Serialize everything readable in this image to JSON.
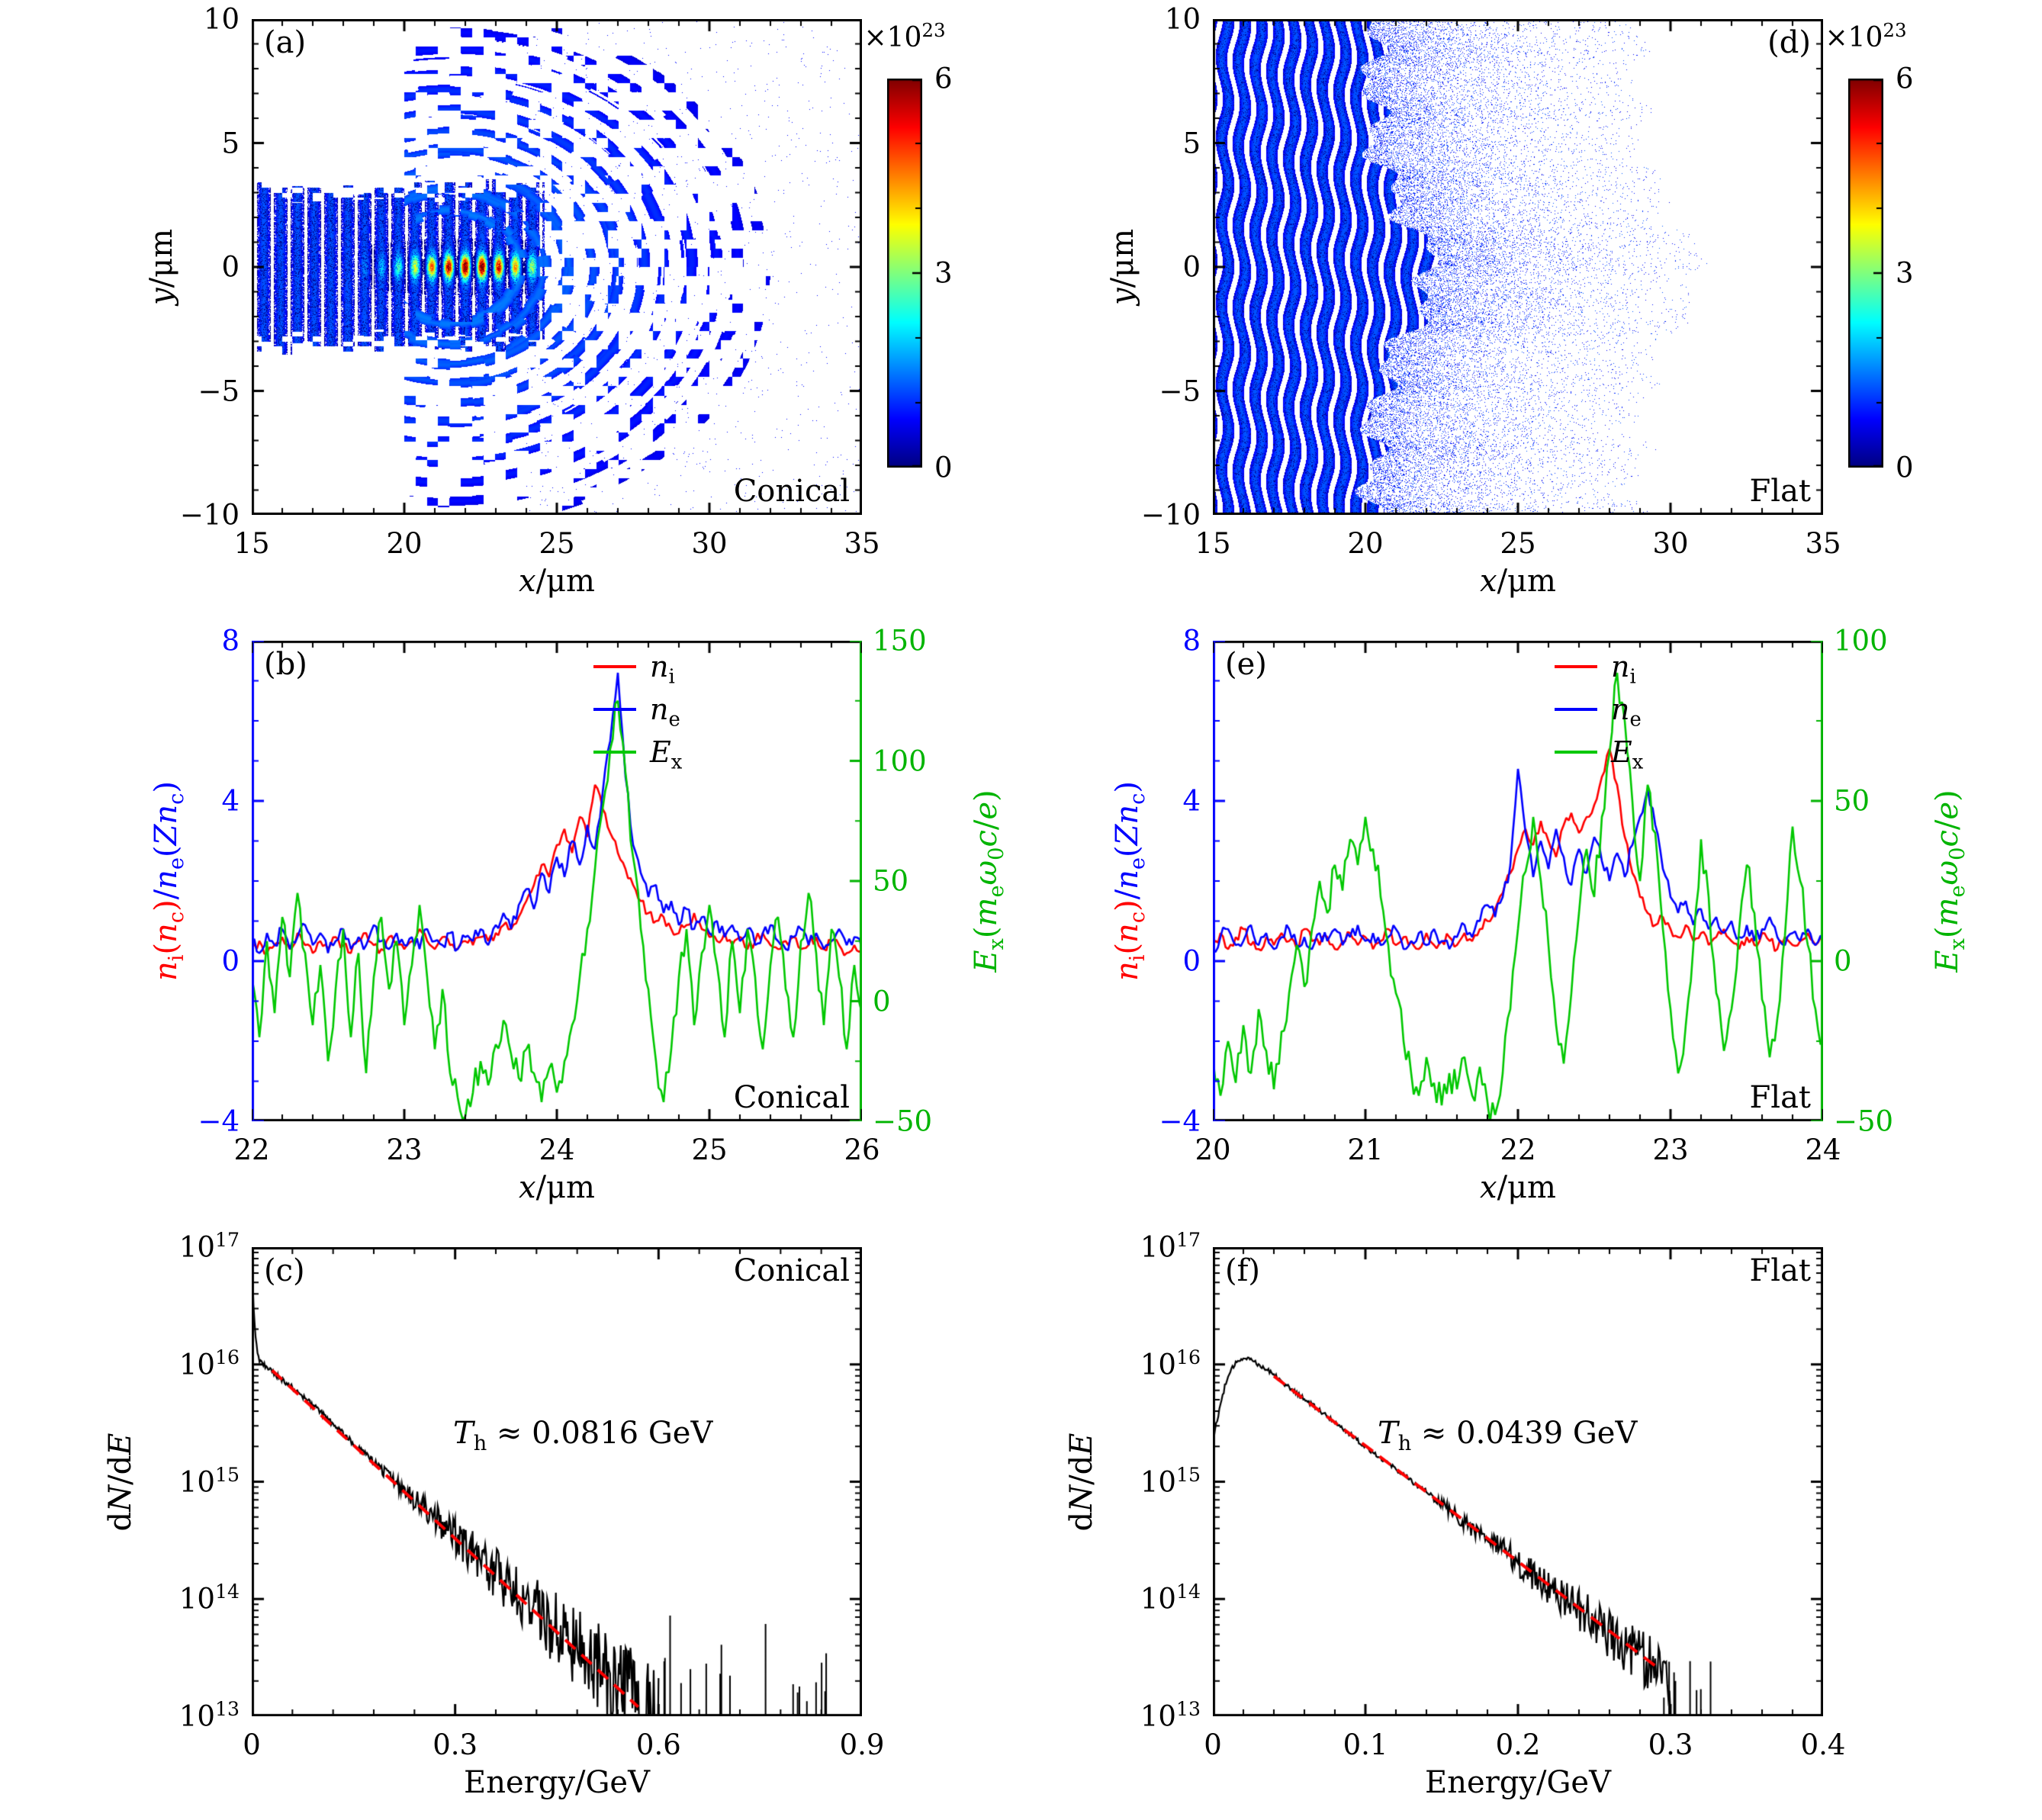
{
  "chart_data": [
    {
      "id": "a",
      "type": "heatmap",
      "panel_tag": "(a)",
      "corner_label": "Conical",
      "xlabel": "*x*/μm",
      "ylabel": "*y*/μm",
      "xlim": [
        15,
        35
      ],
      "ylim": [
        -10,
        10
      ],
      "xticks": [
        15,
        20,
        25,
        30,
        35
      ],
      "yticks": [
        -10,
        -5,
        0,
        5,
        10
      ],
      "colorbar": {
        "title": "×10^{23}",
        "lim": [
          0,
          6
        ],
        "ticks": [
          0,
          3,
          6
        ],
        "colormap": "jet"
      },
      "field": {
        "description": "Ion density map behind conical target: striated plasma channel along y=0 from x=15 to ~24.5 um with hot filament core up to 6e23 for 19<x<24.4, surrounded by conical bow-wave arc filaments expanding to x~32 um",
        "stripe_period_um": 0.55,
        "channel_halfwidth_um": 3.1,
        "core_x_um": [
          18.6,
          24.4
        ],
        "core_peak": 6,
        "arc_center_x_um": 21.5,
        "arc_spacing_um": 0.8,
        "arc_max_radius_um": 10.5
      }
    },
    {
      "id": "d",
      "type": "heatmap",
      "panel_tag": "(d)",
      "corner_label": "Flat",
      "xlabel": "*x*/μm",
      "ylabel": "*y*/μm",
      "xlim": [
        15,
        35
      ],
      "ylim": [
        -10,
        10
      ],
      "xticks": [
        15,
        20,
        25,
        30,
        35
      ],
      "yticks": [
        -10,
        -5,
        0,
        5,
        10
      ],
      "colorbar": {
        "title": "×10^{23}",
        "lim": [
          0,
          6
        ],
        "ticks": [
          0,
          3,
          6
        ],
        "colormap": "jet"
      },
      "field": {
        "description": "Ion density map behind flat target: vertical density stripes from x=15 to ~20 um across all y, central bulge to x~22 um, sparse ion speckle out to x~29 um, density below ~2e23",
        "stripe_period_um": 0.55,
        "stripe_region_x_um": [
          15,
          20.2
        ],
        "center_bulge_x_um": 22.1,
        "speckle_extent_x_um": 29
      }
    },
    {
      "id": "b",
      "type": "lines",
      "panel_tag": "(b)",
      "corner_label": "Conical",
      "xlabel": "*x*/μm",
      "ylabel_left_parts": [
        {
          "text": "*n*_{i}(*n*_{c})",
          "color": "#ff0000"
        },
        {
          "text": "/*n*_{e}(*Zn*_{c})",
          "color": "#0000ff"
        }
      ],
      "ylabel_right": "*E*_{x}(*m*_{e}*ω*_{0}*c*/*e*)",
      "xlim": [
        22,
        26
      ],
      "xticks": [
        22,
        23,
        24,
        25,
        26
      ],
      "ylim_left": [
        -4,
        8
      ],
      "yticks_left": [
        -4,
        0,
        4,
        8
      ],
      "ylim_right": [
        -50,
        150
      ],
      "yticks_right": [
        -50,
        0,
        50,
        100,
        150
      ],
      "axis_colors": {
        "left": "#0000ff",
        "right": "#00b400",
        "top": "#000000",
        "bottom": "#000000"
      },
      "legend": [
        {
          "label": "*n*_{i}",
          "color": "#ff0000"
        },
        {
          "label": "*n*_{e}",
          "color": "#0000ff"
        },
        {
          "label": "*E*_{x}",
          "color": "#00c800"
        }
      ],
      "x_start": 22,
      "x_step": 0.05,
      "series": [
        {
          "name": "n_i",
          "axis": "left",
          "color": "#ff0000",
          "jitter": 0.14,
          "seed": 3,
          "values": [
            0.3,
            0.5,
            0.2,
            0.4,
            0.6,
            0.3,
            0.7,
            0.4,
            0.2,
            0.5,
            0.3,
            0.6,
            0.4,
            0.2,
            0.5,
            0.7,
            0.4,
            0.3,
            0.6,
            0.4,
            0.3,
            0.5,
            0.8,
            0.5,
            0.3,
            0.6,
            0.4,
            0.3,
            0.5,
            0.4,
            0.6,
            0.5,
            0.7,
            0.9,
            0.8,
            1.1,
            1.5,
            1.9,
            2.4,
            2.1,
            2.9,
            3.3,
            2.7,
            3.6,
            3.1,
            4.4,
            3.8,
            3.2,
            2.7,
            2.3,
            1.9,
            1.5,
            1.2,
            1.0,
            1.1,
            0.8,
            0.7,
            0.9,
            1.2,
            0.8,
            0.6,
            0.5,
            0.7,
            0.4,
            0.6,
            0.3,
            0.5,
            0.7,
            0.4,
            0.3,
            0.5,
            0.6,
            0.3,
            0.4,
            0.6,
            0.3,
            0.5,
            0.4,
            0.2,
            0.4,
            0.3
          ]
        },
        {
          "name": "n_e",
          "axis": "left",
          "color": "#0000ff",
          "jitter": 0.18,
          "seed": 4,
          "values": [
            0.5,
            0.2,
            0.7,
            0.4,
            0.8,
            0.3,
            0.6,
            0.9,
            0.4,
            0.7,
            0.2,
            0.5,
            0.8,
            0.3,
            0.6,
            0.4,
            0.9,
            0.5,
            0.3,
            0.7,
            0.4,
            0.6,
            0.3,
            0.8,
            0.5,
            0.4,
            0.7,
            0.3,
            0.6,
            0.5,
            0.8,
            0.4,
            0.9,
            1.2,
            0.8,
            1.4,
            1.8,
            1.3,
            2.2,
            1.7,
            2.6,
            2.1,
            3.0,
            2.4,
            3.4,
            2.8,
            4.2,
            5.5,
            7.2,
            4.6,
            2.9,
            2.2,
            1.6,
            1.9,
            1.2,
            1.5,
            0.9,
            1.3,
            0.8,
            1.1,
            0.7,
            1.0,
            0.6,
            0.9,
            0.5,
            0.8,
            0.4,
            0.7,
            0.9,
            0.5,
            0.3,
            0.6,
            0.8,
            0.4,
            0.7,
            0.3,
            0.5,
            0.8,
            0.4,
            0.6,
            0.3
          ]
        },
        {
          "name": "E_x",
          "axis": "right",
          "color": "#00c800",
          "jitter": 6,
          "seed": 5,
          "values": [
            10,
            -15,
            25,
            -5,
            35,
            10,
            45,
            20,
            -10,
            15,
            -25,
            5,
            30,
            -15,
            20,
            -30,
            10,
            35,
            5,
            25,
            -10,
            15,
            40,
            10,
            -20,
            5,
            -30,
            -40,
            -48,
            -38,
            -25,
            -35,
            -18,
            -8,
            -22,
            -32,
            -20,
            -30,
            -42,
            -28,
            -38,
            -25,
            -10,
            10,
            30,
            55,
            80,
            105,
            125,
            95,
            60,
            30,
            5,
            -25,
            -42,
            -20,
            10,
            30,
            -10,
            20,
            40,
            15,
            -15,
            25,
            -5,
            30,
            10,
            -20,
            15,
            35,
            5,
            -15,
            25,
            45,
            20,
            -10,
            30,
            10,
            -20,
            15,
            -5
          ]
        }
      ]
    },
    {
      "id": "e",
      "type": "lines",
      "panel_tag": "(e)",
      "corner_label": "Flat",
      "xlabel": "*x*/μm",
      "ylabel_left_parts": [
        {
          "text": "*n*_{i}(*n*_{c})",
          "color": "#ff0000"
        },
        {
          "text": "/*n*_{e}(*Zn*_{c})",
          "color": "#0000ff"
        }
      ],
      "ylabel_right": "*E*_{x}(*m*_{e}*ω*_{0}*c*/*e*)",
      "xlim": [
        20,
        24
      ],
      "xticks": [
        20,
        21,
        22,
        23,
        24
      ],
      "ylim_left": [
        -4,
        8
      ],
      "yticks_left": [
        -4,
        0,
        4,
        8
      ],
      "ylim_right": [
        -50,
        100
      ],
      "yticks_right": [
        -50,
        0,
        50,
        100
      ],
      "axis_colors": {
        "left": "#0000ff",
        "right": "#00b400",
        "top": "#000000",
        "bottom": "#000000"
      },
      "legend": [
        {
          "label": "*n*_{i}",
          "color": "#ff0000"
        },
        {
          "label": "*n*_{e}",
          "color": "#0000ff"
        },
        {
          "label": "*E*_{x}",
          "color": "#00c800"
        }
      ],
      "x_start": 20,
      "x_step": 0.05,
      "series": [
        {
          "name": "n_i",
          "axis": "left",
          "color": "#ff0000",
          "jitter": 0.14,
          "seed": 6,
          "values": [
            0.4,
            0.7,
            0.3,
            0.6,
            0.8,
            0.4,
            0.3,
            0.6,
            0.4,
            0.7,
            0.5,
            0.3,
            0.8,
            0.5,
            0.4,
            0.6,
            0.3,
            0.5,
            0.7,
            0.4,
            0.6,
            0.3,
            0.5,
            0.8,
            0.4,
            0.6,
            0.5,
            0.3,
            0.7,
            0.4,
            0.5,
            0.6,
            0.4,
            0.7,
            0.5,
            0.8,
            1.0,
            1.3,
            1.7,
            2.2,
            2.8,
            3.3,
            2.9,
            3.5,
            3.0,
            2.6,
            3.4,
            3.7,
            3.2,
            3.6,
            3.9,
            4.6,
            5.3,
            4.4,
            3.1,
            2.2,
            1.6,
            1.2,
            0.9,
            1.1,
            0.8,
            0.6,
            0.9,
            0.5,
            0.7,
            0.4,
            0.6,
            0.8,
            0.5,
            0.3,
            0.6,
            0.4,
            0.7,
            0.5,
            0.3,
            0.6,
            0.4,
            0.5,
            0.7,
            0.4,
            0.5
          ]
        },
        {
          "name": "n_e",
          "axis": "left",
          "color": "#0000ff",
          "jitter": 0.18,
          "seed": 7,
          "values": [
            0.3,
            0.6,
            0.8,
            0.4,
            0.5,
            0.9,
            0.4,
            0.7,
            0.3,
            0.6,
            0.8,
            0.4,
            0.6,
            0.3,
            0.7,
            0.5,
            0.8,
            0.4,
            0.6,
            0.9,
            0.5,
            0.7,
            0.4,
            0.6,
            0.8,
            0.3,
            0.5,
            0.7,
            0.4,
            0.8,
            0.5,
            0.3,
            0.6,
            0.9,
            0.6,
            1.0,
            1.4,
            1.1,
            1.6,
            2.4,
            4.8,
            3.2,
            2.1,
            3.0,
            2.3,
            3.3,
            2.6,
            1.9,
            2.8,
            2.2,
            3.1,
            2.5,
            2.0,
            2.7,
            2.1,
            2.9,
            3.6,
            4.3,
            3.4,
            2.3,
            1.6,
            1.2,
            1.5,
            0.9,
            1.3,
            0.8,
            1.1,
            0.7,
            1.0,
            0.6,
            0.9,
            0.5,
            0.8,
            1.1,
            0.6,
            0.4,
            0.7,
            0.5,
            0.8,
            0.4,
            0.6
          ]
        },
        {
          "name": "E_x",
          "axis": "right",
          "color": "#00c800",
          "jitter": 5,
          "seed": 8,
          "values": [
            -30,
            -42,
            -25,
            -38,
            -20,
            -35,
            -15,
            -28,
            -40,
            -22,
            -10,
            5,
            -8,
            10,
            25,
            15,
            30,
            22,
            38,
            30,
            45,
            35,
            20,
            5,
            -10,
            -25,
            -35,
            -42,
            -30,
            -38,
            -45,
            -35,
            -40,
            -30,
            -42,
            -33,
            -44,
            -48,
            -35,
            -15,
            10,
            28,
            45,
            25,
            5,
            -20,
            -32,
            -10,
            15,
            35,
            20,
            45,
            65,
            90,
            75,
            50,
            25,
            55,
            40,
            10,
            -15,
            -35,
            -20,
            5,
            38,
            20,
            -10,
            -28,
            -15,
            10,
            30,
            15,
            -12,
            -30,
            -18,
            8,
            42,
            25,
            5,
            -15,
            -25
          ]
        }
      ]
    },
    {
      "id": "c",
      "type": "spectrum",
      "panel_tag": "(c)",
      "corner_label": "Conical",
      "xlabel": "Energy/GeV",
      "ylabel": "d*N*/d*E*",
      "xlim": [
        0,
        0.9
      ],
      "xticks": [
        0,
        0.3,
        0.6,
        0.9
      ],
      "ylog": [
        13,
        17
      ],
      "yticks": [
        13,
        14,
        15,
        16,
        17
      ],
      "ytick_labels": [
        "10^{13}",
        "10^{14}",
        "10^{15}",
        "10^{16}",
        "10^{17}"
      ],
      "fit_label": "*T*_{h} ≈ 0.0816 GeV",
      "fit_label_pos": [
        0.33,
        0.36
      ],
      "curve_log10_keypoints": [
        [
          0,
          16.92
        ],
        [
          0.002,
          16.6
        ],
        [
          0.005,
          16.25
        ],
        [
          0.01,
          16.05
        ],
        [
          0.02,
          15.98
        ],
        [
          0.05,
          15.85
        ],
        [
          0.1,
          15.6
        ],
        [
          0.15,
          15.33
        ],
        [
          0.2,
          15.06
        ],
        [
          0.25,
          14.8
        ],
        [
          0.3,
          14.53
        ],
        [
          0.35,
          14.27
        ],
        [
          0.4,
          14.0
        ],
        [
          0.45,
          13.73
        ],
        [
          0.5,
          13.47
        ],
        [
          0.55,
          13.2
        ],
        [
          0.6,
          12.95
        ]
      ],
      "curve_end": 0.6,
      "noise": {
        "base": 0.025,
        "growth": 0.2,
        "ref": 15.2,
        "seed": 9
      },
      "sparse_tail": {
        "from": 0.58,
        "to": 0.87,
        "count": 18,
        "seed": 21
      },
      "fit_line": {
        "color": "#ff0000",
        "points": [
          [
            0.03,
            15.95
          ],
          [
            0.57,
            13.08
          ]
        ],
        "temperature_GeV": 0.0816
      }
    },
    {
      "id": "f",
      "type": "spectrum",
      "panel_tag": "(f)",
      "corner_label": "Flat",
      "xlabel": "Energy/GeV",
      "ylabel": "d*N*/d*E*",
      "xlim": [
        0,
        0.4
      ],
      "xticks": [
        0,
        0.1,
        0.2,
        0.3,
        0.4
      ],
      "ylog": [
        13,
        17
      ],
      "yticks": [
        13,
        14,
        15,
        16,
        17
      ],
      "ytick_labels": [
        "10^{13}",
        "10^{14}",
        "10^{15}",
        "10^{16}",
        "10^{17}"
      ],
      "fit_label": "*T*_{h} ≈ 0.0439 GeV",
      "fit_label_pos": [
        0.27,
        0.36
      ],
      "curve_log10_keypoints": [
        [
          0,
          15.35
        ],
        [
          0.004,
          15.6
        ],
        [
          0.008,
          15.82
        ],
        [
          0.012,
          15.95
        ],
        [
          0.016,
          16.03
        ],
        [
          0.02,
          16.06
        ],
        [
          0.025,
          16.05
        ],
        [
          0.03,
          16.0
        ],
        [
          0.04,
          15.92
        ],
        [
          0.05,
          15.8
        ],
        [
          0.075,
          15.56
        ],
        [
          0.1,
          15.3
        ],
        [
          0.125,
          15.06
        ],
        [
          0.15,
          14.81
        ],
        [
          0.175,
          14.56
        ],
        [
          0.2,
          14.31
        ],
        [
          0.225,
          14.06
        ],
        [
          0.25,
          13.81
        ],
        [
          0.275,
          13.56
        ],
        [
          0.3,
          13.3
        ]
      ],
      "curve_end": 0.3,
      "noise": {
        "base": 0.02,
        "growth": 0.15,
        "ref": 15.0,
        "seed": 12
      },
      "sparse_tail": {
        "from": 0.295,
        "to": 0.335,
        "count": 8,
        "seed": 22
      },
      "fit_line": {
        "color": "#ff0000",
        "points": [
          [
            0.04,
            15.9
          ],
          [
            0.29,
            13.43
          ]
        ],
        "temperature_GeV": 0.0439
      }
    }
  ]
}
